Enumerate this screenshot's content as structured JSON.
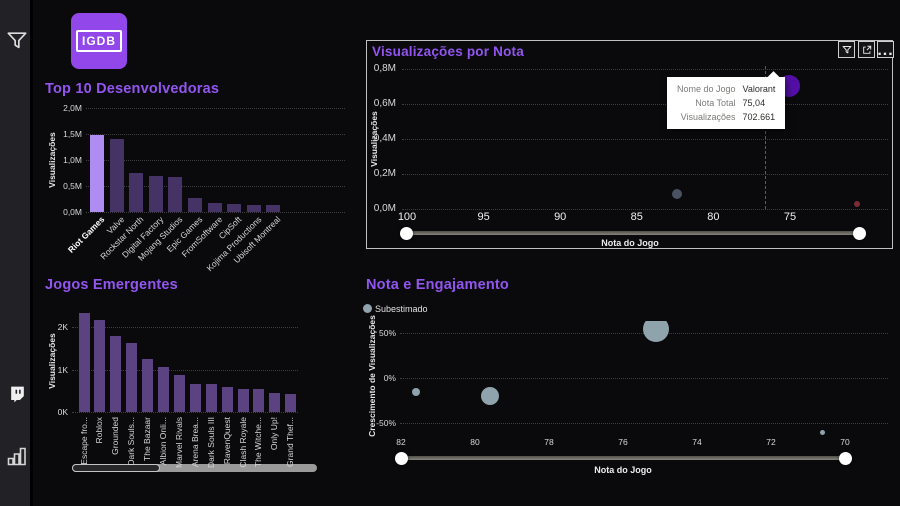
{
  "app": {
    "background": "#0a0a0d",
    "accent": "#9255f0"
  },
  "logo": {
    "text": "IGDB",
    "color": "#9147ea"
  },
  "sidebar": {
    "icons": [
      "filter-icon",
      "twitch-icon",
      "bar-chart-icon"
    ]
  },
  "card": {
    "toolbar": {
      "more_glyph": "..."
    }
  },
  "tooltip": {
    "rows": [
      {
        "label": "Nome do Jogo",
        "value": "Valorant"
      },
      {
        "label": "Nota Total",
        "value": "75,04"
      },
      {
        "label": "Visualizações",
        "value": "702.661"
      }
    ]
  },
  "chart_data": [
    {
      "id": "top_devs",
      "type": "bar",
      "title": "Top 10 Desenvolvedoras",
      "xlabel": "",
      "ylabel": "Visualizações",
      "ylim": [
        0,
        2000000
      ],
      "yticks": [
        {
          "v": 0,
          "label": "0,0M"
        },
        {
          "v": 500000,
          "label": "0,5M"
        },
        {
          "v": 1000000,
          "label": "1,0M"
        },
        {
          "v": 1500000,
          "label": "1,5M"
        },
        {
          "v": 2000000,
          "label": "2,0M"
        }
      ],
      "categories": [
        "Riot Games",
        "Valve",
        "Rockstar North",
        "Digital Factory",
        "Mojang Studios",
        "Epic Games",
        "FromSoftware",
        "CipSoft",
        "Kojima Productions",
        "Ubisoft Montreal"
      ],
      "values": [
        1480000,
        1400000,
        750000,
        700000,
        670000,
        260000,
        180000,
        160000,
        140000,
        130000
      ],
      "highlight_index": 0,
      "bar_color": "#463366",
      "highlight_color": "#ae8cf2",
      "grid": true,
      "legend_position": "none"
    },
    {
      "id": "views_by_rating",
      "type": "scatter",
      "title": "Visualizações por Nota",
      "xlabel": "Nota do Jogo",
      "ylabel": "Visualizações",
      "x_reversed": true,
      "xlim": [
        100,
        68.3
      ],
      "xticks": [
        100,
        95,
        90,
        85,
        80,
        75
      ],
      "ylim": [
        0,
        800000
      ],
      "yticks": [
        {
          "v": 0,
          "label": "0,0M"
        },
        {
          "v": 200000,
          "label": "0,2M"
        },
        {
          "v": 400000,
          "label": "0,4M"
        },
        {
          "v": 600000,
          "label": "0,6M"
        },
        {
          "v": 800000,
          "label": "0,8M"
        }
      ],
      "reference_line_x": 76.6,
      "reference_line_color": "#7b2ff7",
      "points": [
        {
          "name": "Valorant",
          "x": 75.04,
          "y": 702661,
          "r": 11,
          "color": "#540fa8"
        },
        {
          "name": "",
          "x": 82.4,
          "y": 85000,
          "r": 5,
          "color": "#4a5160"
        },
        {
          "name": "",
          "x": 70.6,
          "y": 30000,
          "r": 3,
          "color": "#7c2b36"
        }
      ],
      "grid": true
    },
    {
      "id": "emerging_games",
      "type": "bar",
      "title": "Jogos Emergentes",
      "xlabel": "",
      "ylabel": "Visualizações",
      "ylim": [
        0,
        2400
      ],
      "yticks": [
        {
          "v": 0,
          "label": "0K"
        },
        {
          "v": 1000,
          "label": "1K"
        },
        {
          "v": 2000,
          "label": "2K"
        }
      ],
      "categories": [
        "Escape fro...",
        "Roblox",
        "Grounded",
        "Dark Souls...",
        "The Bazaar",
        "Albion Onli...",
        "Marvel Rivals",
        "Arena Brea...",
        "Dark Souls III",
        "RavenQuest",
        "Clash Royale",
        "The Witche...",
        "Only Up!",
        "Grand Thef..."
      ],
      "values": [
        2330,
        2160,
        1790,
        1620,
        1250,
        1060,
        870,
        660,
        660,
        590,
        540,
        530,
        450,
        420
      ],
      "bar_color": "#5a4380",
      "grid": true,
      "legend_position": "none"
    },
    {
      "id": "rating_engagement",
      "type": "scatter",
      "title": "Nota e Engajamento",
      "xlabel": "Nota do Jogo",
      "ylabel": "Crescimento de Visualizações",
      "legend": [
        {
          "label": "Subestimado",
          "color": "#8fa3ad"
        }
      ],
      "legend_position": "top-left",
      "x_reversed": true,
      "xlim": [
        82,
        70
      ],
      "xticks": [
        82,
        80,
        78,
        76,
        74,
        72,
        70
      ],
      "ylim": [
        -63,
        63
      ],
      "yticks": [
        {
          "v": 50,
          "label": "50%"
        },
        {
          "v": 0,
          "label": "0%"
        },
        {
          "v": -50,
          "label": "-50%"
        }
      ],
      "points": [
        {
          "x": 81.6,
          "y": -15,
          "r": 4,
          "color": "#8fa3ad"
        },
        {
          "x": 79.6,
          "y": -20,
          "r": 9,
          "color": "#8fa3ad"
        },
        {
          "x": 75.1,
          "y": 55,
          "r": 13,
          "color": "#8fa3ad"
        },
        {
          "x": 70.6,
          "y": -60,
          "r": 2.5,
          "color": "#8fa3ad"
        }
      ],
      "grid": true
    }
  ]
}
